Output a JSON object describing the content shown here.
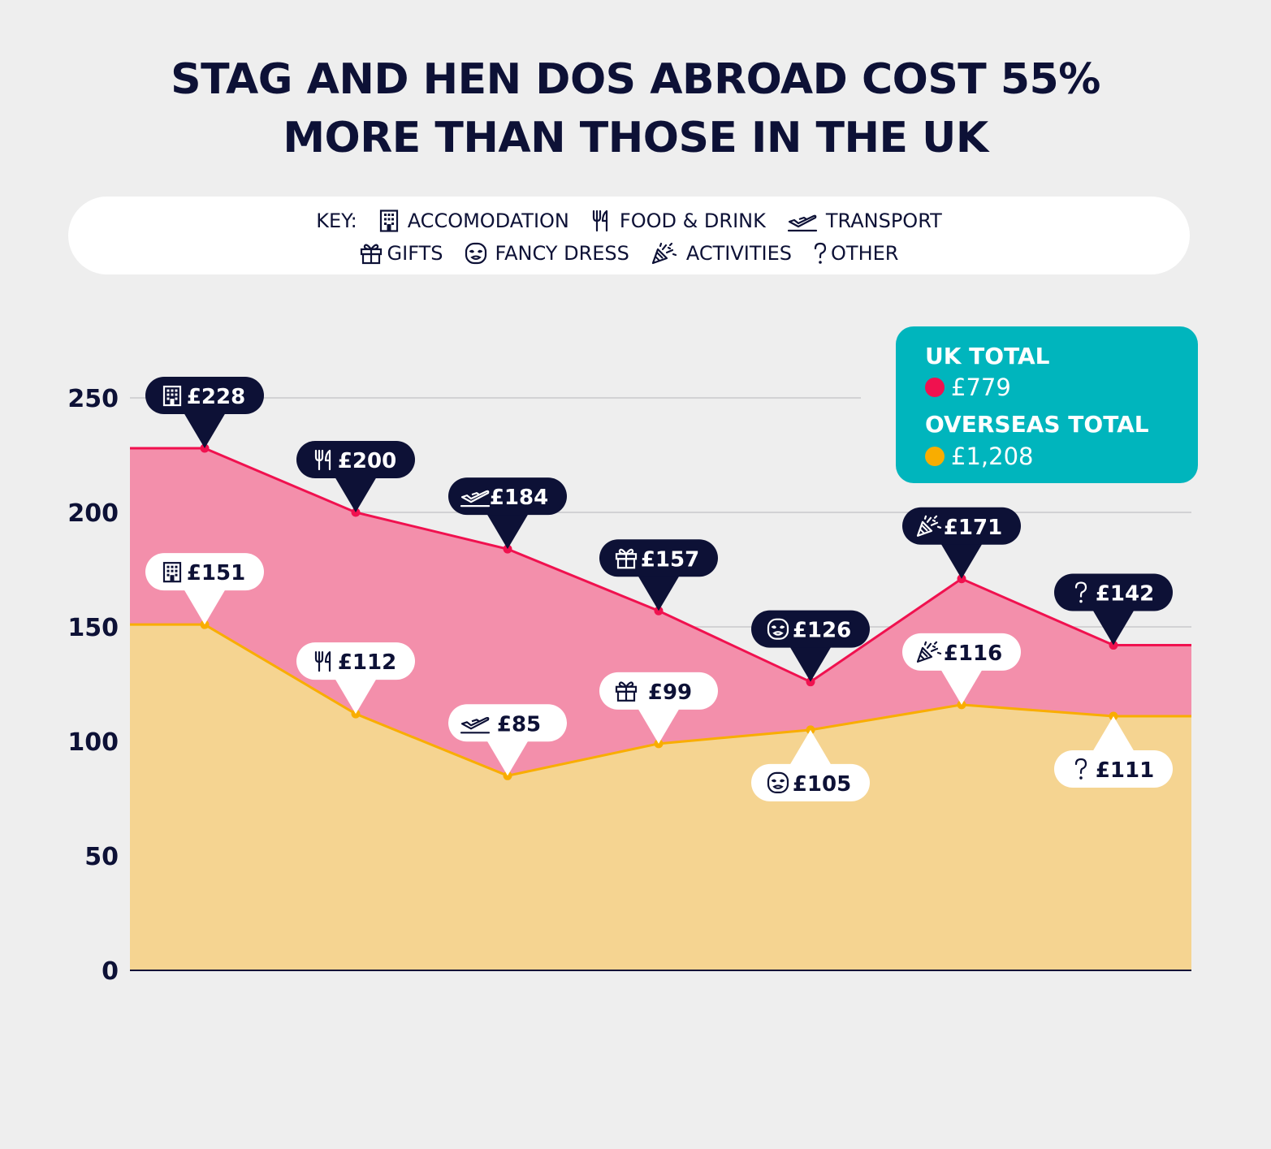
{
  "header": {
    "title_line1": "STAG AND HEN DOS ABROAD COST 55%",
    "title_line2": "MORE THAN THOSE IN THE UK"
  },
  "key": {
    "prefix": "KEY:",
    "items": [
      {
        "icon": "building-icon",
        "label": "ACCOMODATION"
      },
      {
        "icon": "fork-knife-icon",
        "label": "FOOD & DRINK"
      },
      {
        "icon": "plane-icon",
        "label": "TRANSPORT"
      },
      {
        "icon": "gift-icon",
        "label": "GIFTS"
      },
      {
        "icon": "mask-icon",
        "label": "FANCY DRESS"
      },
      {
        "icon": "party-popper-icon",
        "label": "ACTIVITIES"
      },
      {
        "icon": "question-icon",
        "label": "OTHER"
      }
    ]
  },
  "totals": {
    "uk_label": "UK TOTAL",
    "uk_value": "£779",
    "overseas_label": "OVERSEAS TOTAL",
    "overseas_value": "£1,208"
  },
  "colors": {
    "background": "#eeeeee",
    "overseas_line": "#f0114f",
    "overseas_area": "#f38fab",
    "uk_line": "#f9ad00",
    "uk_area": "#f5d491",
    "dark": "#0d1136",
    "totals_box": "#00b5bd"
  },
  "chart_data": {
    "type": "area",
    "categories": [
      "ACCOMODATION",
      "FOOD & DRINK",
      "TRANSPORT",
      "GIFTS",
      "FANCY DRESS",
      "ACTIVITIES",
      "OTHER"
    ],
    "icons": [
      "building-icon",
      "fork-knife-icon",
      "plane-icon",
      "gift-icon",
      "mask-icon",
      "party-popper-icon",
      "question-icon"
    ],
    "series": [
      {
        "key": "overseas",
        "values": [
          228,
          200,
          184,
          157,
          126,
          171,
          142
        ],
        "labels": [
          "£228",
          "£200",
          "£184",
          "£157",
          "£126",
          "£171",
          "£142"
        ]
      },
      {
        "key": "uk",
        "values": [
          151,
          112,
          85,
          99,
          105,
          116,
          111
        ],
        "labels": [
          "£151",
          "£112",
          "£85",
          "£99",
          "£105",
          "£116",
          "£111"
        ]
      }
    ],
    "y_ticks": [
      0,
      50,
      100,
      150,
      200,
      250
    ],
    "ylim": [
      0,
      250
    ],
    "grid": true
  }
}
